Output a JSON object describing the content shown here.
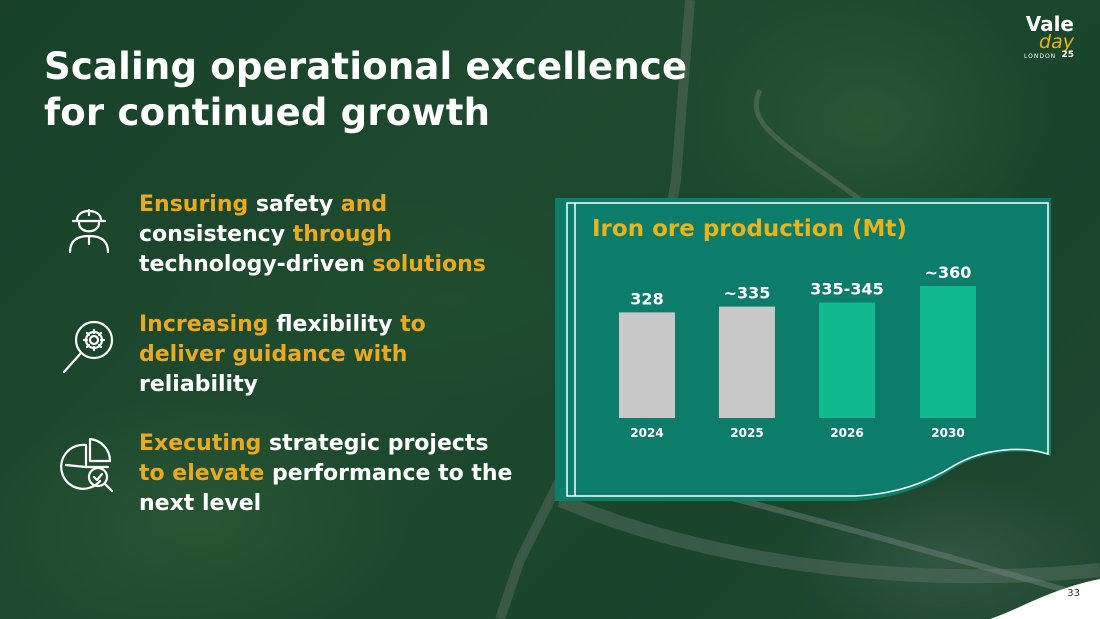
{
  "slide": {
    "title_line1": "Scaling operational excellence",
    "title_line2": "for continued growth",
    "page_number": "33"
  },
  "logo": {
    "word1": "Vale",
    "word2": "day",
    "word3": "LONDON",
    "word4": "25"
  },
  "bullets": [
    {
      "icon": "worker-helmet-icon",
      "parts": [
        {
          "t": "Ensuring",
          "c": "hl"
        },
        {
          "t": " safety ",
          "c": "wh"
        },
        {
          "t": "and",
          "c": "hl"
        },
        {
          "t": " consistency ",
          "c": "wh"
        },
        {
          "t": "through",
          "c": "hl"
        },
        {
          "t": " technology-driven ",
          "c": "wh"
        },
        {
          "t": "solutions",
          "c": "hl"
        }
      ]
    },
    {
      "icon": "gear-magnifier-icon",
      "parts": [
        {
          "t": "Increasing",
          "c": "hl"
        },
        {
          "t": " flexibility ",
          "c": "wh"
        },
        {
          "t": "to deliver guidance with",
          "c": "hl"
        },
        {
          "t": " reliability",
          "c": "wh"
        }
      ]
    },
    {
      "icon": "pie-chart-check-icon",
      "parts": [
        {
          "t": "Executing",
          "c": "hl"
        },
        {
          "t": " strategic projects ",
          "c": "wh"
        },
        {
          "t": "to elevate",
          "c": "hl"
        },
        {
          "t": " performance to the next level",
          "c": "wh"
        }
      ]
    }
  ],
  "colors": {
    "accent_gold": "#e9a920",
    "panel_teal": "#0c7c6b",
    "bar_gray": "#c8c8c8",
    "bar_green": "#10b98e"
  },
  "chart_data": {
    "type": "bar",
    "title": "Iron ore production (Mt)",
    "categories": [
      "2024",
      "2025",
      "2026",
      "2030"
    ],
    "values": [
      328,
      335,
      340,
      360
    ],
    "labels": [
      "328",
      "~335",
      "335-345",
      "~360"
    ],
    "kinds": [
      "actual",
      "actual",
      "guidance",
      "guidance"
    ],
    "xlabel": "",
    "ylabel": ""
  }
}
